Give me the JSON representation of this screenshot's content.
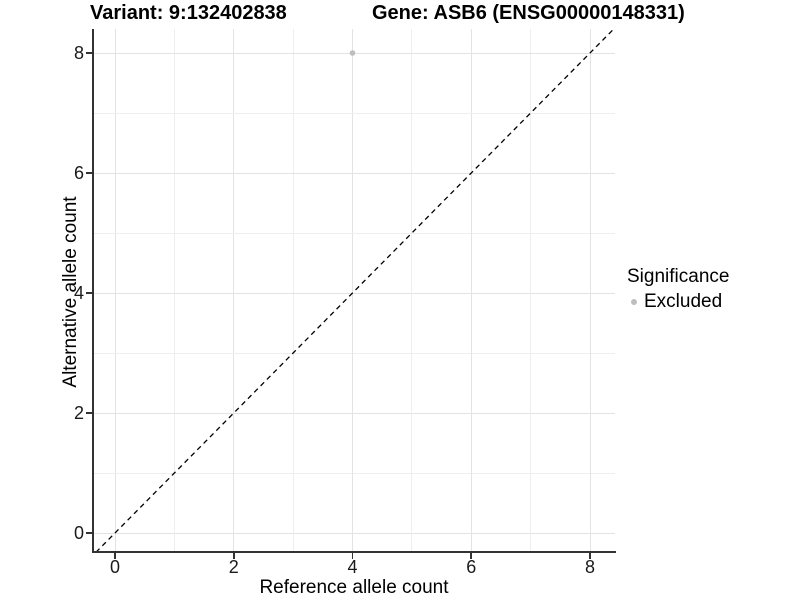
{
  "titles": {
    "variant": "Variant: 9:132402838",
    "gene": "Gene: ASB6 (ENSG00000148331)"
  },
  "chart_data": {
    "type": "scatter",
    "title": "Variant: 9:132402838 | Gene: ASB6 (ENSG00000148331)",
    "xlabel": "Reference allele count",
    "ylabel": "Alternative allele count",
    "xlim": [
      -0.37,
      8.42
    ],
    "ylim": [
      -0.32,
      8.4
    ],
    "xticks": [
      0,
      2,
      4,
      6,
      8
    ],
    "yticks": [
      0,
      2,
      4,
      6,
      8
    ],
    "grid": {
      "on": true,
      "minor_step": 1,
      "major_color": "#e3e3e3",
      "minor_color": "#eeeeee"
    },
    "series": [
      {
        "name": "Excluded",
        "color": "#bebebe",
        "points": [
          {
            "x": 4,
            "y": 8
          }
        ]
      }
    ],
    "reference_line": {
      "type": "y=x",
      "style": "dashed",
      "color": "#000000"
    },
    "legend": {
      "position": "right",
      "title": "Significance",
      "entries": [
        {
          "label": "Excluded",
          "color": "#bebebe",
          "marker": "dot"
        }
      ]
    }
  },
  "colors": {
    "axis_line": "#333333",
    "tick_label": "#1a1a1a",
    "title_text": "#000000",
    "point": "#bebebe",
    "background": "#ffffff"
  }
}
